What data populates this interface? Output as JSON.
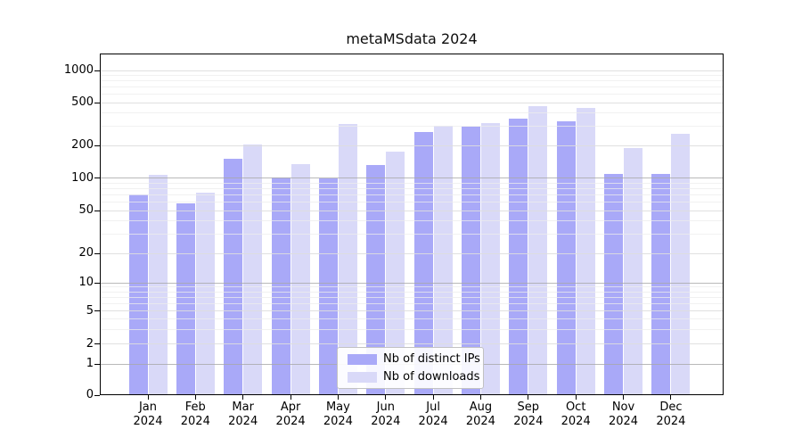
{
  "title": "metaMSdata 2024",
  "colors": {
    "ips_bar": "#a9a9f8",
    "downloads_bar": "#d9d9f8",
    "grid_power_of_ten": "#a8a8a8",
    "grid_major": "#dddddd",
    "grid_minor": "#ececec",
    "axis": "#000000",
    "legend_border": "#c2c2c2"
  },
  "legend": {
    "items": [
      {
        "key": "ips",
        "label": "Nb of distinct IPs"
      },
      {
        "key": "downloads",
        "label": "Nb of downloads"
      }
    ]
  },
  "y_axis": {
    "tick_labels": [
      "0",
      "1",
      "2",
      "5",
      "10",
      "20",
      "50",
      "100",
      "200",
      "500",
      "1000"
    ]
  },
  "x_axis": {
    "months": [
      "Jan",
      "Feb",
      "Mar",
      "Apr",
      "May",
      "Jun",
      "Jul",
      "Aug",
      "Sep",
      "Oct",
      "Nov",
      "Dec"
    ],
    "year": "2024"
  },
  "chart_data": {
    "type": "bar",
    "title": "metaMSdata 2024",
    "categories": [
      "Jan 2024",
      "Feb 2024",
      "Mar 2024",
      "Apr 2024",
      "May 2024",
      "Jun 2024",
      "Jul 2024",
      "Aug 2024",
      "Sep 2024",
      "Oct 2024",
      "Nov 2024",
      "Dec 2024"
    ],
    "series": [
      {
        "name": "Nb of distinct IPs",
        "color": "#a9a9f8",
        "values": [
          70,
          58,
          150,
          101,
          100,
          131,
          265,
          297,
          355,
          337,
          110,
          110
        ]
      },
      {
        "name": "Nb of downloads",
        "color": "#d9d9f8",
        "values": [
          107,
          73,
          205,
          135,
          315,
          175,
          305,
          325,
          465,
          450,
          190,
          255
        ]
      }
    ],
    "yscale": "symlog",
    "y_ticks": [
      0,
      1,
      2,
      5,
      10,
      20,
      50,
      100,
      200,
      500,
      1000
    ],
    "y_minor_ticks": [
      3,
      4,
      6,
      7,
      8,
      9,
      30,
      40,
      60,
      70,
      80,
      90,
      300,
      400,
      600,
      700,
      800,
      900
    ],
    "ylim": [
      0,
      1440
    ],
    "grid": true,
    "legend_position": "lower center"
  }
}
